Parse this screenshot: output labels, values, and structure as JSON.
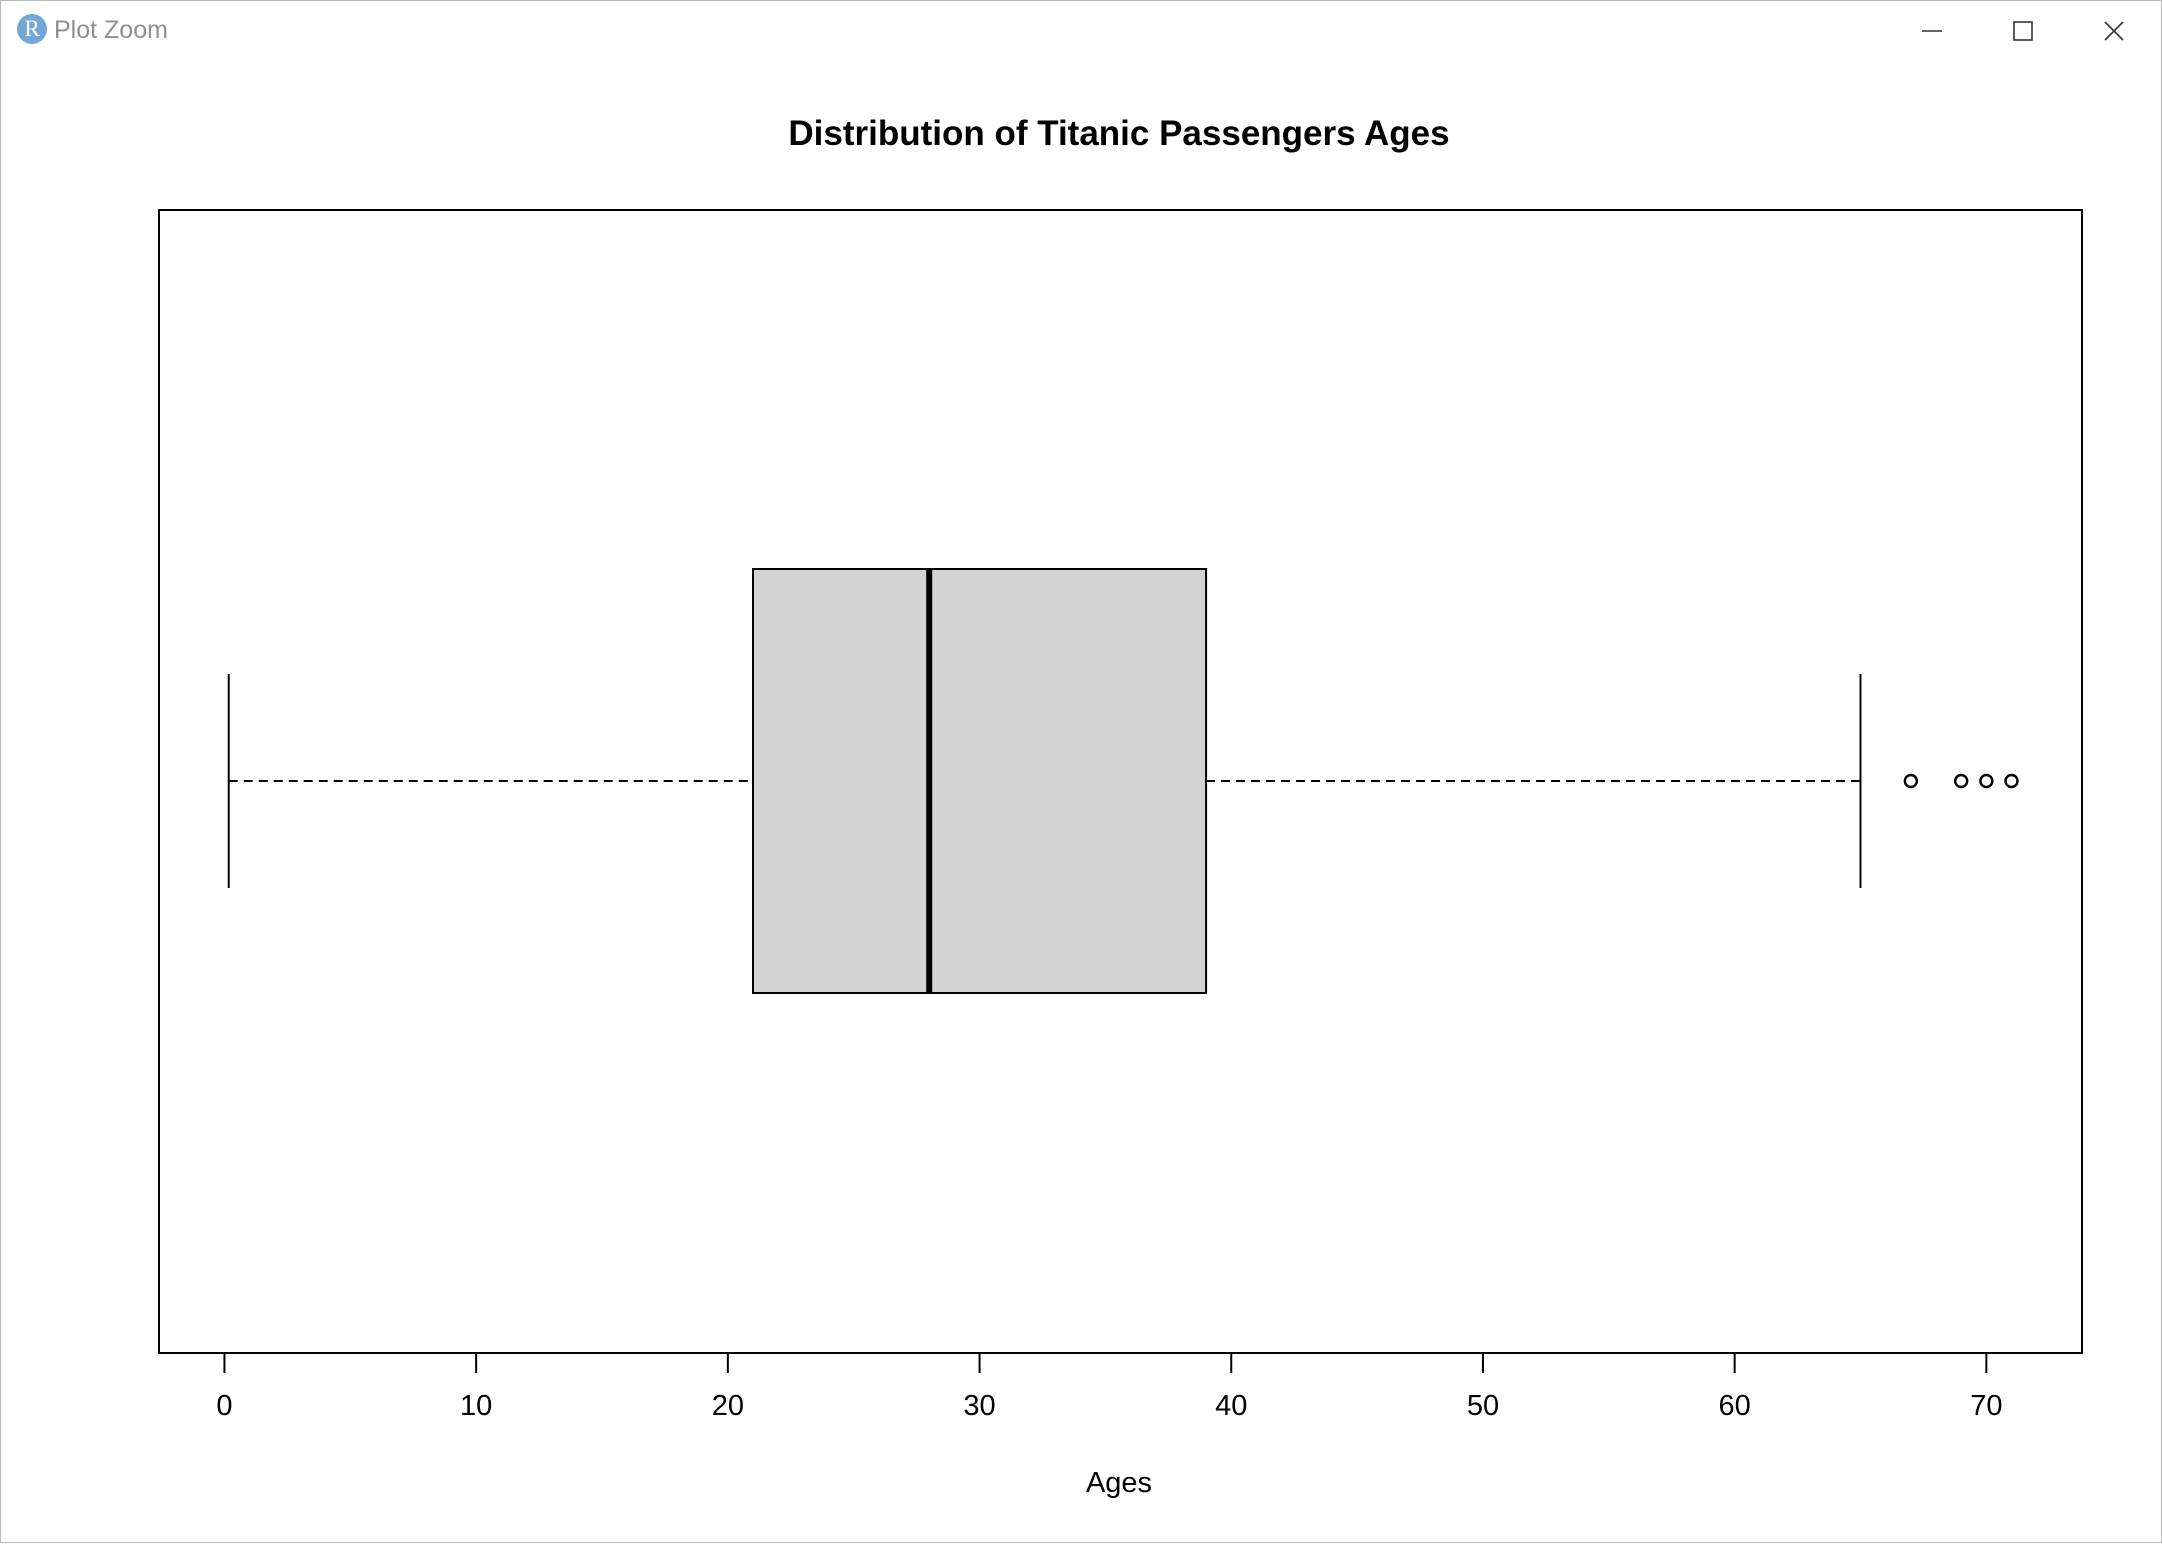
{
  "window": {
    "title": "Plot Zoom",
    "app_icon_letter": "R",
    "icon_color": "#75a7d6",
    "controls": [
      "minimize-icon",
      "maximize-icon",
      "close-icon"
    ]
  },
  "chart_data": {
    "type": "boxplot",
    "orientation": "horizontal",
    "title": "Distribution of Titanic Passengers Ages",
    "xlabel": "Ages",
    "ylabel": "",
    "xlim": [
      -2.6,
      73.8
    ],
    "x_ticks": [
      0,
      10,
      20,
      30,
      40,
      50,
      60,
      70
    ],
    "box": {
      "whisker_low": 0.17,
      "q1": 21,
      "median": 28,
      "q3": 39,
      "whisker_high": 65
    },
    "outliers": [
      67,
      69,
      70,
      71
    ],
    "box_fill": "#d3d3d3",
    "line_color": "#000000",
    "grid": false,
    "legend": "none"
  }
}
